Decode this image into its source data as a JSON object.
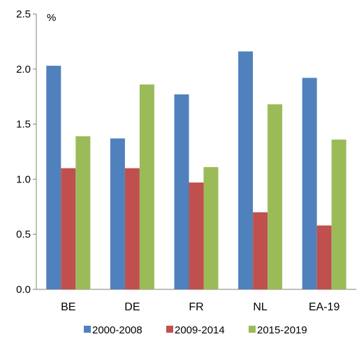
{
  "chart_data": {
    "type": "bar",
    "unit_label": "%",
    "categories": [
      "BE",
      "DE",
      "FR",
      "NL",
      "EA-19"
    ],
    "series": [
      {
        "name": "2000-2008",
        "color": "#4f81bd",
        "values": [
          2.03,
          1.37,
          1.77,
          2.16,
          1.92
        ]
      },
      {
        "name": "2009-2014",
        "color": "#c0504d",
        "values": [
          1.1,
          1.1,
          0.97,
          0.7,
          0.58
        ]
      },
      {
        "name": "2015-2019",
        "color": "#9bbb59",
        "values": [
          1.39,
          1.86,
          1.11,
          1.68,
          1.36
        ]
      }
    ],
    "ylim": [
      0,
      2.5
    ],
    "yticks": [
      "0.0",
      "0.5",
      "1.0",
      "1.5",
      "2.0",
      "2.5"
    ],
    "grid": false,
    "legend_position": "bottom"
  }
}
